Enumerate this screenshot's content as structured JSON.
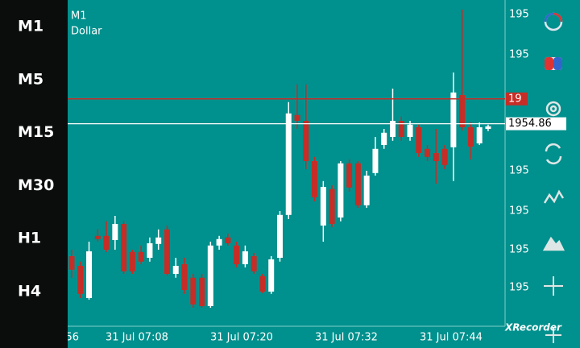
{
  "chart_data": {
    "type": "candlestick",
    "title": "M1",
    "subtitle": "Dollar",
    "open": [
      1950.75,
      1950.45,
      1949.45,
      1951.38,
      1951.38,
      1951.25,
      1951.75,
      1950.88,
      1950.88,
      1950.7,
      1951.13,
      1951.58,
      1950.2,
      1950.5,
      1950.08,
      1950.08,
      1949.2,
      1951.08,
      1951.33,
      1951.08,
      1950.5,
      1950.75,
      1950.13,
      1949.65,
      1950.7,
      1952.03,
      1955.13,
      1954.95,
      1953.7,
      1951.7,
      1952.83,
      1951.95,
      1953.63,
      1953.63,
      1952.33,
      1953.33,
      1954.2,
      1954.45,
      1954.95,
      1954.45,
      1954.75,
      1954.08,
      1953.95,
      1954.08,
      1954.13,
      1955.75,
      1954.75,
      1954.25,
      1954.7
    ],
    "high": [
      1950.95,
      1950.58,
      1951.2,
      1951.58,
      1951.83,
      1952.0,
      1951.83,
      1950.95,
      1951.08,
      1951.33,
      1951.58,
      1951.7,
      1950.7,
      1950.7,
      1950.2,
      1950.2,
      1951.2,
      1951.38,
      1951.45,
      1951.2,
      1951.08,
      1950.85,
      1950.2,
      1950.75,
      1952.15,
      1955.53,
      1956.08,
      1956.08,
      1953.83,
      1953.08,
      1952.95,
      1953.7,
      1953.75,
      1953.7,
      1953.4,
      1954.45,
      1954.7,
      1955.95,
      1955.08,
      1954.95,
      1954.83,
      1954.2,
      1954.7,
      1954.2,
      1956.45,
      1958.4,
      1954.9,
      1954.9,
      1954.83
    ],
    "low": [
      1950.08,
      1949.45,
      1949.4,
      1951.2,
      1950.88,
      1950.95,
      1950.2,
      1950.2,
      1950.5,
      1950.58,
      1950.95,
      1950.15,
      1950.08,
      1949.58,
      1949.15,
      1949.15,
      1949.15,
      1950.95,
      1951.08,
      1950.4,
      1950.4,
      1950.2,
      1949.6,
      1949.58,
      1950.58,
      1951.9,
      1954.7,
      1953.45,
      1952.45,
      1951.2,
      1951.65,
      1951.83,
      1952.75,
      1952.25,
      1952.25,
      1953.25,
      1954.08,
      1954.33,
      1954.33,
      1954.33,
      1953.83,
      1953.7,
      1953.0,
      1953.45,
      1953.08,
      1954.65,
      1953.75,
      1954.2,
      1954.63
    ],
    "close": [
      1950.33,
      1949.58,
      1950.9,
      1951.28,
      1950.95,
      1951.75,
      1950.28,
      1950.28,
      1950.58,
      1951.15,
      1951.33,
      1950.2,
      1950.45,
      1949.7,
      1949.25,
      1949.2,
      1951.08,
      1951.28,
      1951.15,
      1950.5,
      1950.9,
      1950.28,
      1949.65,
      1950.65,
      1952.03,
      1955.18,
      1954.95,
      1953.7,
      1952.58,
      1952.9,
      1951.75,
      1953.63,
      1952.88,
      1952.33,
      1953.25,
      1954.08,
      1954.58,
      1954.95,
      1954.45,
      1954.83,
      1953.95,
      1953.83,
      1953.7,
      1953.58,
      1955.83,
      1954.75,
      1954.15,
      1954.75,
      1954.78
    ],
    "up_color": "#ffffff",
    "down_color": "#c62d26",
    "ylim": [
      1948.6,
      1958.6
    ],
    "bid_line": {
      "value": 1954.86,
      "label": "1954.86"
    },
    "ask_line": 1955.63,
    "ask_label": "19",
    "price_labels": [
      "195",
      "195",
      "195",
      "195",
      "195",
      "195"
    ],
    "x_labels": [
      "56",
      "31 Jul 07:08",
      "31 Jul 07:20",
      "31 Jul 07:32",
      "31 Jul 07:44"
    ]
  },
  "timeframes": [
    "M1",
    "M5",
    "M15",
    "M30",
    "H1",
    "H4"
  ],
  "watermark": "XRecorder"
}
